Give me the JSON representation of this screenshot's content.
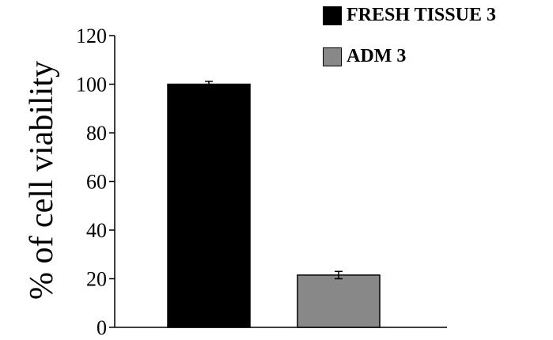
{
  "chart_data": {
    "type": "bar",
    "categories": [
      "FRESH TISSUE 3",
      "ADM 3"
    ],
    "series": [
      {
        "name": "FRESH TISSUE 3",
        "values": [
          100,
          null
        ],
        "color": "#000000"
      },
      {
        "name": "ADM 3",
        "values": [
          null,
          21.5
        ],
        "color": "#888888"
      }
    ],
    "values": [
      100,
      21.5
    ],
    "error": [
      1.2,
      1.5
    ],
    "title": "",
    "xlabel": "",
    "ylabel": "% of cell viability",
    "ylim": [
      0,
      120
    ],
    "yticks": [
      0,
      20,
      40,
      60,
      80,
      100,
      120
    ],
    "ytick_labels": [
      "0",
      "20",
      "40",
      "60",
      "80",
      "100",
      "120"
    ],
    "legend": {
      "placement": "top-right",
      "items": [
        {
          "label": "FRESH TISSUE 3",
          "color": "#000000"
        },
        {
          "label": "ADM 3",
          "color": "#888888"
        }
      ]
    },
    "grid": false
  }
}
